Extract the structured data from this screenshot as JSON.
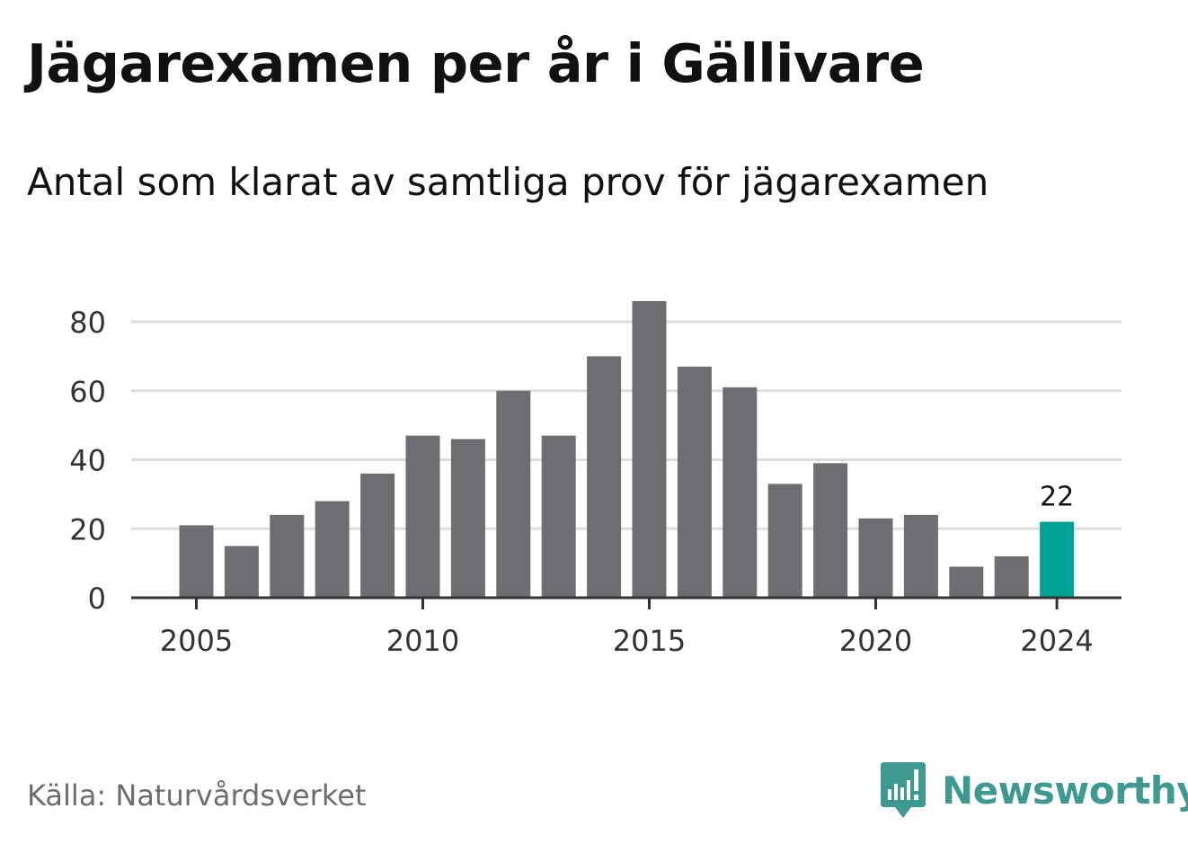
{
  "title": "Jägarexamen per år i Gällivare",
  "subtitle": "Antal som klarat av samtliga prov för jägarexamen",
  "source": "Källa: Naturvårdsverket",
  "brand": {
    "name": "Newsworthy",
    "logo_icon": "newsworthy-logo-icon",
    "color": "#3e9a91"
  },
  "colors": {
    "bar": "#6e6d72",
    "highlight": "#00a396",
    "grid": "#dddddd",
    "axis": "#333333",
    "tick_text": "#333333"
  },
  "chart_data": {
    "type": "bar",
    "x": [
      2005,
      2006,
      2007,
      2008,
      2009,
      2010,
      2011,
      2012,
      2013,
      2014,
      2015,
      2016,
      2017,
      2018,
      2019,
      2020,
      2021,
      2022,
      2023,
      2024
    ],
    "values": [
      21,
      15,
      24,
      28,
      36,
      47,
      46,
      60,
      47,
      70,
      86,
      67,
      61,
      33,
      39,
      23,
      24,
      9,
      12,
      22
    ],
    "highlight_x": 2024,
    "highlight_label": "22",
    "xticks": [
      2005,
      2010,
      2015,
      2020,
      2024
    ],
    "yticks": [
      0,
      20,
      40,
      60,
      80
    ],
    "ylim": [
      0,
      80
    ],
    "grid": true,
    "legend": "none",
    "xlabel": "",
    "ylabel": ""
  }
}
